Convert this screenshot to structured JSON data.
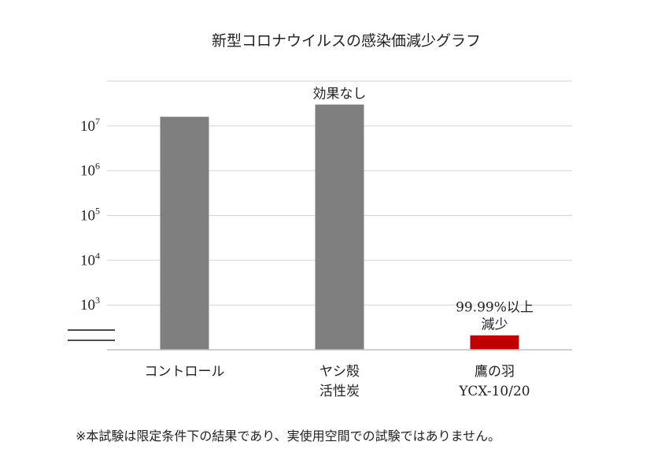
{
  "chart_data": {
    "type": "bar",
    "title": "新型コロナウイルスの感染価減少グラフ",
    "yscale": "log",
    "ylim": [
      100,
      100000000
    ],
    "y_tick_labels": [
      {
        "value": 1000,
        "base": "10",
        "exp": "3"
      },
      {
        "value": 10000,
        "base": "10",
        "exp": "4"
      },
      {
        "value": 100000,
        "base": "10",
        "exp": "5"
      },
      {
        "value": 1000000,
        "base": "10",
        "exp": "6"
      },
      {
        "value": 10000000,
        "base": "10",
        "exp": "7"
      }
    ],
    "gridlines": true,
    "axis_break": true,
    "categories": [
      [
        "コントロール"
      ],
      [
        "ヤシ殻",
        "活性炭"
      ],
      [
        "鷹の羽",
        "YCX-10/20"
      ]
    ],
    "values": [
      16000000,
      30000000,
      210
    ],
    "colors": [
      "#7f7f7f",
      "#7f7f7f",
      "#c00000"
    ],
    "annotations": [
      {
        "category_index": 1,
        "lines": [
          "効果なし"
        ]
      },
      {
        "category_index": 2,
        "lines": [
          "99.99%以上",
          "減少"
        ]
      }
    ]
  },
  "footnote": "※本試験は限定条件下の結果であり、実使用空間での試験ではありません。"
}
